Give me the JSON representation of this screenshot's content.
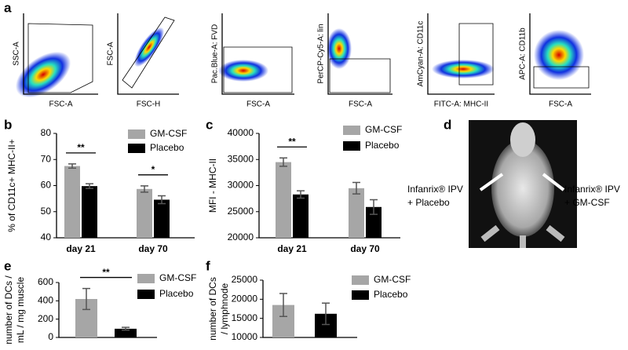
{
  "flow_cytometry": {
    "panel": "a",
    "plots": [
      {
        "x_label": "FSC-A",
        "y_label": "SSC-A"
      },
      {
        "x_label": "FSC-H",
        "y_label": "FSC-A"
      },
      {
        "x_label": "FSC-A",
        "y_label": "Pac.Blue-A: FVD"
      },
      {
        "x_label": "FSC-A",
        "y_label": "PerCP-Cy5-A: lin"
      },
      {
        "x_label": "FITC-A: MHC-II",
        "y_label": "AmCyan-A: CD11c"
      },
      {
        "x_label": "FSC-A",
        "y_label": "APC-A: CD11b"
      }
    ]
  },
  "image_panel": {
    "panel": "d",
    "left_label": [
      "Infanrix® IPV",
      "+ Placebo"
    ],
    "right_label": [
      "Infanrix® IPV",
      "+ GM-CSF"
    ]
  },
  "chart_data": [
    {
      "type": "bar",
      "panel": "b",
      "y_label": [
        "% of CD11c+ MHC-II+"
      ],
      "categories": [
        "day 21",
        "day 70"
      ],
      "series": [
        {
          "name": "GM-CSF",
          "color": "#a6a6a6",
          "values": [
            67.5,
            58.7
          ],
          "errors": [
            0.8,
            1.2
          ]
        },
        {
          "name": "Placebo",
          "color": "#000000",
          "values": [
            59.8,
            54.6
          ],
          "errors": [
            0.9,
            1.5
          ]
        }
      ],
      "ylim": [
        40,
        80
      ],
      "yticks": [
        40,
        50,
        60,
        70,
        80
      ],
      "annotations": [
        {
          "text": "**",
          "category": 0
        },
        {
          "text": "*",
          "category": 1
        }
      ]
    },
    {
      "type": "bar",
      "panel": "c",
      "y_label": [
        "MFI - MHC-II"
      ],
      "categories": [
        "day 21",
        "day 70"
      ],
      "series": [
        {
          "name": "GM-CSF",
          "color": "#a6a6a6",
          "values": [
            34500,
            29500
          ],
          "errors": [
            800,
            1100
          ]
        },
        {
          "name": "Placebo",
          "color": "#000000",
          "values": [
            28300,
            25900
          ],
          "errors": [
            700,
            1400
          ]
        }
      ],
      "ylim": [
        20000,
        40000
      ],
      "yticks": [
        20000,
        25000,
        30000,
        35000,
        40000
      ],
      "annotations": [
        {
          "text": "**",
          "category": 0
        }
      ]
    },
    {
      "type": "bar",
      "panel": "e",
      "y_label": [
        "number of DCs /",
        "mL / mg muscle"
      ],
      "categories": [
        null
      ],
      "series": [
        {
          "name": "GM-CSF",
          "color": "#a6a6a6",
          "values": [
            420
          ],
          "errors": [
            115
          ]
        },
        {
          "name": "Placebo",
          "color": "#000000",
          "values": [
            95
          ],
          "errors": [
            15
          ]
        }
      ],
      "ylim": [
        0,
        600
      ],
      "yticks": [
        0,
        200,
        400,
        600
      ],
      "annotations": [
        {
          "text": "**",
          "category": 0
        }
      ]
    },
    {
      "type": "bar",
      "panel": "f",
      "y_label": [
        "number of DCs",
        "/ lymphnode"
      ],
      "categories": [
        null
      ],
      "series": [
        {
          "name": "GM-CSF",
          "color": "#a6a6a6",
          "values": [
            18500
          ],
          "errors": [
            3000
          ]
        },
        {
          "name": "Placebo",
          "color": "#000000",
          "values": [
            16200
          ],
          "errors": [
            2800
          ]
        }
      ],
      "ylim": [
        10000,
        25000
      ],
      "yticks": [
        10000,
        15000,
        20000,
        25000
      ],
      "annotations": []
    }
  ]
}
